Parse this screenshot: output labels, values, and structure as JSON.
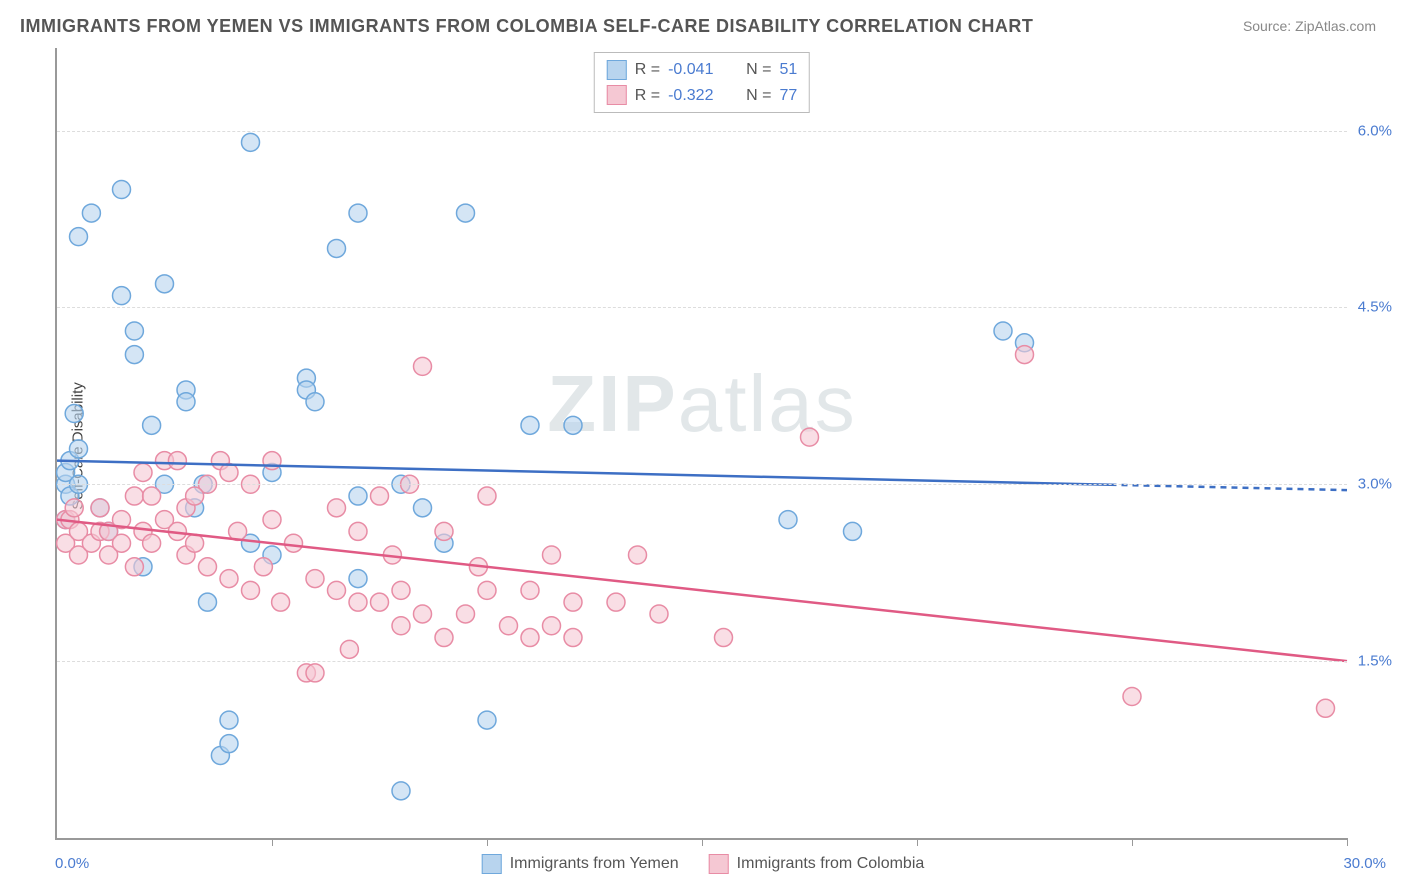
{
  "title": "IMMIGRANTS FROM YEMEN VS IMMIGRANTS FROM COLOMBIA SELF-CARE DISABILITY CORRELATION CHART",
  "source_label": "Source: ",
  "source_name": "ZipAtlas.com",
  "ylabel": "Self-Care Disability",
  "watermark_bold": "ZIP",
  "watermark_light": "atlas",
  "chart": {
    "type": "scatter",
    "xlim": [
      0,
      30
    ],
    "ylim": [
      0,
      6.7
    ],
    "x_min_label": "0.0%",
    "x_max_label": "30.0%",
    "yticks": [
      1.5,
      3.0,
      4.5,
      6.0
    ],
    "ytick_labels": [
      "1.5%",
      "3.0%",
      "4.5%",
      "6.0%"
    ],
    "xtick_positions": [
      5,
      10,
      15,
      20,
      25,
      30
    ],
    "background_color": "#ffffff",
    "grid_color": "#dddddd",
    "axis_color": "#999999",
    "marker_radius": 9,
    "marker_stroke_width": 1.5,
    "line_width": 2.5,
    "series": [
      {
        "name": "Immigrants from Yemen",
        "fill_color": "#b8d4ee",
        "stroke_color": "#6fa8dc",
        "fill_opacity": 0.6,
        "line_color": "#3d6fc4",
        "r_value": "-0.041",
        "n_value": "51",
        "trend_y_start": 3.2,
        "trend_y_end": 2.95,
        "trend_solid_xmax": 24.5,
        "points": [
          [
            0.2,
            2.7
          ],
          [
            0.2,
            3.0
          ],
          [
            0.2,
            3.1
          ],
          [
            0.3,
            3.2
          ],
          [
            0.3,
            2.9
          ],
          [
            0.5,
            3.3
          ],
          [
            0.4,
            3.6
          ],
          [
            0.5,
            3.0
          ],
          [
            0.8,
            5.3
          ],
          [
            1.5,
            5.5
          ],
          [
            1.5,
            4.6
          ],
          [
            1.8,
            4.3
          ],
          [
            1.8,
            4.1
          ],
          [
            2.2,
            3.5
          ],
          [
            2.0,
            2.3
          ],
          [
            2.5,
            4.7
          ],
          [
            2.5,
            3.0
          ],
          [
            3.0,
            3.8
          ],
          [
            3.0,
            3.7
          ],
          [
            3.4,
            3.0
          ],
          [
            3.5,
            2.0
          ],
          [
            3.8,
            0.7
          ],
          [
            4.0,
            0.8
          ],
          [
            4.0,
            1.0
          ],
          [
            4.5,
            5.9
          ],
          [
            5.0,
            3.1
          ],
          [
            5.0,
            2.4
          ],
          [
            5.8,
            3.9
          ],
          [
            5.8,
            3.8
          ],
          [
            6.5,
            5.0
          ],
          [
            7.0,
            5.3
          ],
          [
            7.0,
            2.9
          ],
          [
            7.0,
            2.2
          ],
          [
            8.0,
            3.0
          ],
          [
            8.0,
            0.4
          ],
          [
            8.5,
            2.8
          ],
          [
            9.0,
            2.5
          ],
          [
            9.5,
            5.3
          ],
          [
            10.0,
            1.0
          ],
          [
            11.0,
            3.5
          ],
          [
            12.0,
            3.5
          ],
          [
            17.0,
            2.7
          ],
          [
            18.5,
            2.6
          ],
          [
            22.0,
            4.3
          ],
          [
            22.5,
            4.2
          ],
          [
            0.5,
            5.1
          ],
          [
            1.0,
            2.8
          ],
          [
            1.2,
            2.6
          ],
          [
            6.0,
            3.7
          ],
          [
            3.2,
            2.8
          ],
          [
            4.5,
            2.5
          ]
        ]
      },
      {
        "name": "Immigrants from Colombia",
        "fill_color": "#f5c8d3",
        "stroke_color": "#e88ca5",
        "fill_opacity": 0.6,
        "line_color": "#e05a84",
        "r_value": "-0.322",
        "n_value": "77",
        "trend_y_start": 2.7,
        "trend_y_end": 1.5,
        "trend_solid_xmax": 30,
        "points": [
          [
            0.2,
            2.5
          ],
          [
            0.2,
            2.7
          ],
          [
            0.3,
            2.7
          ],
          [
            0.4,
            2.8
          ],
          [
            0.5,
            2.4
          ],
          [
            0.5,
            2.6
          ],
          [
            0.8,
            2.5
          ],
          [
            1.0,
            2.6
          ],
          [
            1.0,
            2.8
          ],
          [
            1.2,
            2.4
          ],
          [
            1.2,
            2.6
          ],
          [
            1.5,
            2.7
          ],
          [
            1.5,
            2.5
          ],
          [
            1.8,
            2.3
          ],
          [
            2.0,
            2.6
          ],
          [
            2.0,
            3.1
          ],
          [
            2.2,
            2.5
          ],
          [
            2.5,
            2.7
          ],
          [
            2.5,
            3.2
          ],
          [
            2.8,
            3.2
          ],
          [
            3.0,
            2.8
          ],
          [
            3.0,
            2.4
          ],
          [
            3.2,
            2.5
          ],
          [
            3.5,
            3.0
          ],
          [
            3.5,
            2.3
          ],
          [
            3.8,
            3.2
          ],
          [
            4.0,
            2.2
          ],
          [
            4.0,
            3.1
          ],
          [
            4.2,
            2.6
          ],
          [
            4.5,
            3.0
          ],
          [
            4.5,
            2.1
          ],
          [
            5.0,
            3.2
          ],
          [
            5.0,
            2.7
          ],
          [
            5.2,
            2.0
          ],
          [
            5.5,
            2.5
          ],
          [
            5.8,
            1.4
          ],
          [
            6.0,
            1.4
          ],
          [
            6.0,
            2.2
          ],
          [
            6.5,
            2.1
          ],
          [
            6.5,
            2.8
          ],
          [
            7.0,
            2.6
          ],
          [
            7.0,
            2.0
          ],
          [
            7.5,
            2.9
          ],
          [
            7.5,
            2.0
          ],
          [
            8.0,
            2.1
          ],
          [
            8.0,
            1.8
          ],
          [
            8.2,
            3.0
          ],
          [
            8.5,
            4.0
          ],
          [
            8.5,
            1.9
          ],
          [
            9.0,
            2.6
          ],
          [
            9.0,
            1.7
          ],
          [
            9.5,
            1.9
          ],
          [
            10.0,
            2.9
          ],
          [
            10.0,
            2.1
          ],
          [
            10.5,
            1.8
          ],
          [
            11.0,
            1.7
          ],
          [
            11.0,
            2.1
          ],
          [
            11.5,
            2.4
          ],
          [
            11.5,
            1.8
          ],
          [
            12.0,
            1.7
          ],
          [
            12.0,
            2.0
          ],
          [
            13.5,
            2.4
          ],
          [
            14.0,
            1.9
          ],
          [
            15.5,
            1.7
          ],
          [
            17.5,
            3.4
          ],
          [
            22.5,
            4.1
          ],
          [
            25.0,
            1.2
          ],
          [
            29.5,
            1.1
          ],
          [
            1.8,
            2.9
          ],
          [
            2.2,
            2.9
          ],
          [
            2.8,
            2.6
          ],
          [
            3.2,
            2.9
          ],
          [
            4.8,
            2.3
          ],
          [
            6.8,
            1.6
          ],
          [
            7.8,
            2.4
          ],
          [
            9.8,
            2.3
          ],
          [
            13.0,
            2.0
          ]
        ]
      }
    ]
  },
  "bottom_legend": [
    {
      "label": "Immigrants from Yemen",
      "fill": "#b8d4ee",
      "border": "#6fa8dc"
    },
    {
      "label": "Immigrants from Colombia",
      "fill": "#f5c8d3",
      "border": "#e88ca5"
    }
  ]
}
